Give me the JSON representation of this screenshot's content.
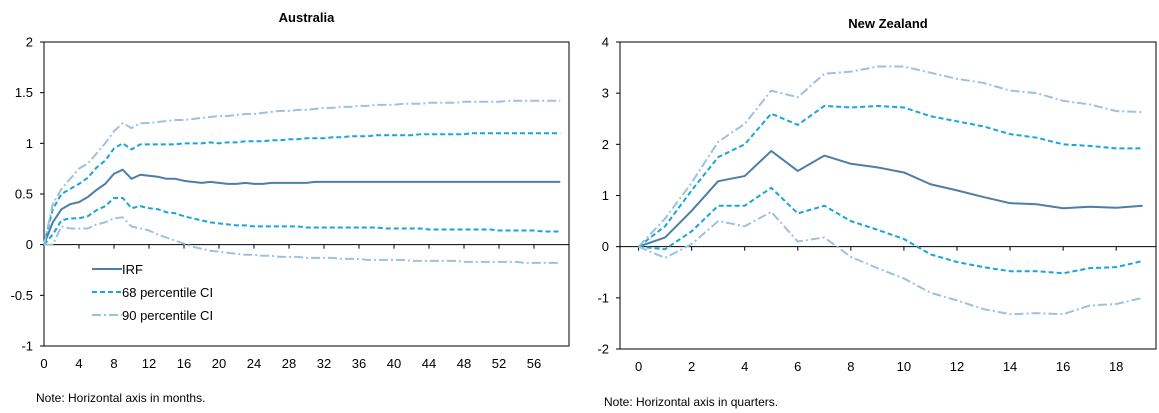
{
  "chart_data": [
    {
      "type": "line",
      "title": "Australia",
      "note": "Note: Horizontal axis in months.",
      "xlim": [
        0,
        60
      ],
      "ylim": [
        -1,
        2
      ],
      "xticks": [
        0,
        4,
        8,
        12,
        16,
        20,
        24,
        28,
        32,
        36,
        40,
        44,
        48,
        52,
        56
      ],
      "xtick_labels": [
        "0",
        "4",
        "8",
        "12",
        "16",
        "20",
        "24",
        "28",
        "32",
        "36",
        "40",
        "44",
        "48",
        "52",
        "56"
      ],
      "yticks": [
        -1,
        -0.5,
        0,
        0.5,
        1,
        1.5,
        2
      ],
      "ytick_labels": [
        "-1",
        "-0.5",
        "0",
        "0.5",
        "1",
        "1.5",
        "2"
      ],
      "grid": false,
      "legend": "bottom-left",
      "colors": {
        "IRF": "#4d7ea8",
        "CI68": "#1aa4dc",
        "CI90": "#9ec1e0"
      },
      "x": [
        0,
        1,
        2,
        3,
        4,
        5,
        6,
        7,
        8,
        9,
        10,
        11,
        12,
        13,
        14,
        15,
        16,
        17,
        18,
        19,
        20,
        21,
        22,
        23,
        24,
        25,
        26,
        27,
        28,
        29,
        30,
        31,
        32,
        33,
        34,
        35,
        36,
        37,
        38,
        39,
        40,
        41,
        42,
        43,
        44,
        45,
        46,
        47,
        48,
        49,
        50,
        51,
        52,
        53,
        54,
        55,
        56,
        57,
        58,
        59
      ],
      "series": [
        {
          "name": "IRF",
          "style": "solid",
          "values": [
            0,
            0.22,
            0.35,
            0.4,
            0.42,
            0.47,
            0.54,
            0.6,
            0.7,
            0.74,
            0.65,
            0.69,
            0.68,
            0.67,
            0.65,
            0.65,
            0.63,
            0.62,
            0.61,
            0.62,
            0.61,
            0.6,
            0.6,
            0.61,
            0.6,
            0.6,
            0.61,
            0.61,
            0.61,
            0.61,
            0.61,
            0.62,
            0.62,
            0.62,
            0.62,
            0.62,
            0.62,
            0.62,
            0.62,
            0.62,
            0.62,
            0.62,
            0.62,
            0.62,
            0.62,
            0.62,
            0.62,
            0.62,
            0.62,
            0.62,
            0.62,
            0.62,
            0.62,
            0.62,
            0.62,
            0.62,
            0.62,
            0.62,
            0.62,
            0.62
          ]
        },
        {
          "name": "68 percentile CI",
          "style": "dash",
          "values": [
            0,
            0.35,
            0.5,
            0.55,
            0.6,
            0.66,
            0.76,
            0.83,
            0.95,
            1.0,
            0.94,
            0.99,
            0.99,
            0.99,
            0.99,
            0.99,
            1.0,
            1.0,
            1.0,
            1.01,
            1.0,
            1.01,
            1.01,
            1.02,
            1.02,
            1.02,
            1.03,
            1.03,
            1.04,
            1.04,
            1.05,
            1.05,
            1.05,
            1.06,
            1.06,
            1.07,
            1.07,
            1.07,
            1.08,
            1.08,
            1.08,
            1.08,
            1.08,
            1.09,
            1.09,
            1.09,
            1.09,
            1.09,
            1.09,
            1.1,
            1.1,
            1.1,
            1.1,
            1.1,
            1.1,
            1.1,
            1.1,
            1.1,
            1.1,
            1.1
          ]
        },
        {
          "name": "",
          "style": "dash",
          "values": [
            0,
            0.1,
            0.24,
            0.26,
            0.26,
            0.28,
            0.34,
            0.38,
            0.46,
            0.46,
            0.36,
            0.38,
            0.36,
            0.35,
            0.32,
            0.31,
            0.28,
            0.26,
            0.24,
            0.22,
            0.21,
            0.2,
            0.19,
            0.19,
            0.18,
            0.18,
            0.18,
            0.18,
            0.18,
            0.18,
            0.17,
            0.17,
            0.17,
            0.17,
            0.17,
            0.17,
            0.17,
            0.17,
            0.17,
            0.16,
            0.16,
            0.16,
            0.16,
            0.16,
            0.15,
            0.15,
            0.15,
            0.15,
            0.15,
            0.15,
            0.15,
            0.15,
            0.14,
            0.14,
            0.14,
            0.14,
            0.14,
            0.13,
            0.13,
            0.13
          ]
        },
        {
          "name": "90 percentile CI",
          "style": "dashdot",
          "values": [
            0,
            0.4,
            0.55,
            0.65,
            0.75,
            0.8,
            0.9,
            1.0,
            1.12,
            1.2,
            1.15,
            1.2,
            1.2,
            1.21,
            1.22,
            1.23,
            1.23,
            1.24,
            1.25,
            1.26,
            1.27,
            1.27,
            1.28,
            1.29,
            1.29,
            1.3,
            1.31,
            1.32,
            1.32,
            1.33,
            1.33,
            1.34,
            1.35,
            1.35,
            1.36,
            1.36,
            1.37,
            1.37,
            1.38,
            1.38,
            1.38,
            1.39,
            1.39,
            1.39,
            1.4,
            1.4,
            1.4,
            1.4,
            1.41,
            1.41,
            1.41,
            1.41,
            1.41,
            1.42,
            1.42,
            1.42,
            1.42,
            1.42,
            1.42,
            1.42
          ]
        },
        {
          "name": "",
          "style": "dashdot",
          "values": [
            0,
            0.0,
            0.18,
            0.16,
            0.16,
            0.16,
            0.2,
            0.22,
            0.26,
            0.27,
            0.18,
            0.16,
            0.14,
            0.1,
            0.07,
            0.04,
            0.01,
            -0.02,
            -0.04,
            -0.06,
            -0.07,
            -0.08,
            -0.09,
            -0.1,
            -0.1,
            -0.11,
            -0.11,
            -0.12,
            -0.12,
            -0.12,
            -0.13,
            -0.13,
            -0.13,
            -0.13,
            -0.14,
            -0.14,
            -0.14,
            -0.15,
            -0.15,
            -0.15,
            -0.15,
            -0.15,
            -0.16,
            -0.16,
            -0.16,
            -0.16,
            -0.16,
            -0.16,
            -0.17,
            -0.17,
            -0.17,
            -0.17,
            -0.17,
            -0.17,
            -0.17,
            -0.18,
            -0.18,
            -0.18,
            -0.18,
            -0.18
          ]
        }
      ]
    },
    {
      "type": "line",
      "title": "New Zealand",
      "note": "Note: Horizontal axis in quarters.",
      "xlim": [
        -0.7,
        19.5
      ],
      "ylim": [
        -2,
        4
      ],
      "xticks": [
        0,
        2,
        4,
        6,
        8,
        10,
        12,
        14,
        16,
        18
      ],
      "xtick_labels": [
        "0",
        "2",
        "4",
        "6",
        "8",
        "10",
        "12",
        "14",
        "16",
        "18"
      ],
      "yticks": [
        -2,
        -1,
        0,
        1,
        2,
        3,
        4
      ],
      "ytick_labels": [
        "-2",
        "-1",
        "0",
        "1",
        "2",
        "3",
        "4"
      ],
      "grid": false,
      "legend": "none",
      "colors": {
        "IRF": "#4d7ea8",
        "CI68": "#1aa4dc",
        "CI90": "#9ec1e0"
      },
      "x": [
        0,
        1,
        2,
        3,
        4,
        5,
        6,
        7,
        8,
        9,
        10,
        11,
        12,
        13,
        14,
        15,
        16,
        17,
        18,
        19
      ],
      "series": [
        {
          "name": "",
          "style": "solid",
          "values": [
            0,
            0.18,
            0.7,
            1.28,
            1.38,
            1.87,
            1.48,
            1.78,
            1.62,
            1.55,
            1.45,
            1.22,
            1.1,
            0.97,
            0.85,
            0.83,
            0.75,
            0.78,
            0.76,
            0.8
          ]
        },
        {
          "name": "",
          "style": "dash",
          "values": [
            0,
            0.4,
            1.1,
            1.75,
            2.0,
            2.6,
            2.38,
            2.75,
            2.72,
            2.75,
            2.72,
            2.55,
            2.45,
            2.35,
            2.2,
            2.13,
            2.0,
            1.97,
            1.92,
            1.92
          ]
        },
        {
          "name": "",
          "style": "dash",
          "values": [
            0,
            -0.05,
            0.3,
            0.8,
            0.8,
            1.15,
            0.65,
            0.8,
            0.5,
            0.33,
            0.15,
            -0.15,
            -0.3,
            -0.4,
            -0.48,
            -0.48,
            -0.52,
            -0.42,
            -0.4,
            -0.28
          ]
        },
        {
          "name": "",
          "style": "dashdot",
          "values": [
            0,
            0.55,
            1.25,
            2.05,
            2.4,
            3.05,
            2.92,
            3.38,
            3.42,
            3.52,
            3.52,
            3.4,
            3.28,
            3.2,
            3.05,
            3.0,
            2.85,
            2.78,
            2.65,
            2.63
          ]
        },
        {
          "name": "",
          "style": "dashdot",
          "values": [
            0,
            -0.22,
            0.05,
            0.5,
            0.4,
            0.68,
            0.1,
            0.18,
            -0.2,
            -0.42,
            -0.62,
            -0.9,
            -1.05,
            -1.22,
            -1.32,
            -1.3,
            -1.32,
            -1.15,
            -1.12,
            -1.0
          ]
        }
      ]
    }
  ]
}
